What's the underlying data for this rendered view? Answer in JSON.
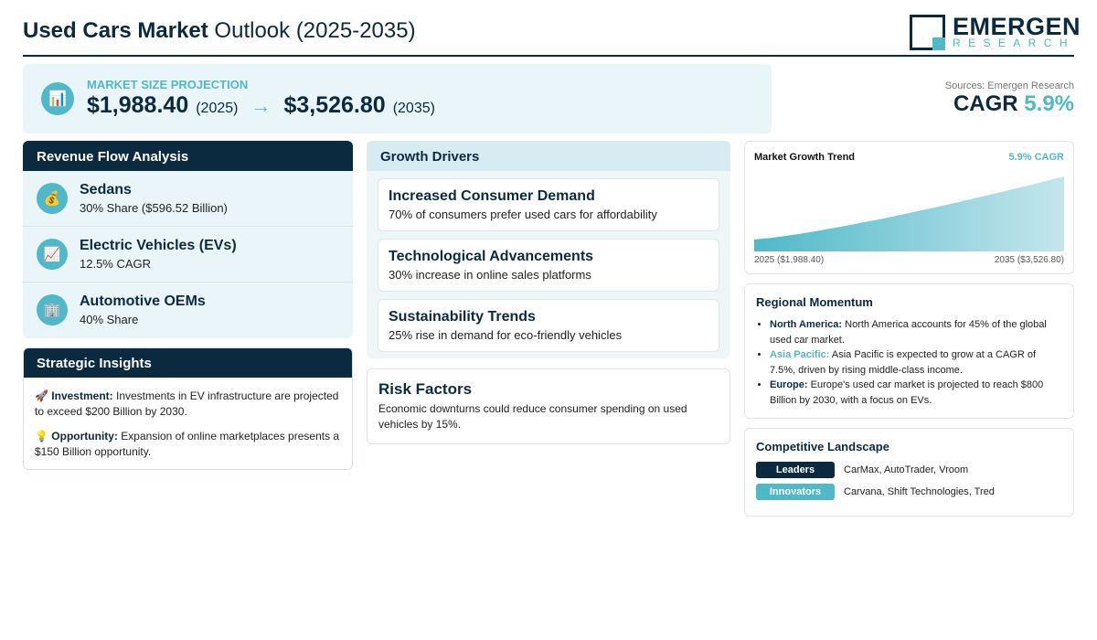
{
  "header": {
    "title_bold": "Used Cars Market",
    "title_rest": " Outlook (2025-2035)",
    "logo_name": "EMERGEN",
    "logo_sub": "RESEARCH"
  },
  "projection": {
    "label": "MARKET SIZE PROJECTION",
    "icon": "bar-chart-icon",
    "start_value": "$1,988.40",
    "start_year": "(2025)",
    "arrow": "→",
    "end_value": "$3,526.80",
    "end_year": "(2035)"
  },
  "cagr": {
    "source": "Sources: Emergen Research",
    "label": "CAGR ",
    "value": "5.9%"
  },
  "revenue_flow": {
    "title": "Revenue Flow Analysis",
    "items": [
      {
        "icon": "money-bag-icon",
        "title": "Sedans",
        "subtitle": "30% Share ($596.52 Billion)"
      },
      {
        "icon": "trend-up-icon",
        "title": "Electric Vehicles (EVs)",
        "subtitle": "12.5% CAGR"
      },
      {
        "icon": "building-icon",
        "title": "Automotive OEMs",
        "subtitle": "40% Share"
      }
    ]
  },
  "strategic_insights": {
    "title": "Strategic Insights",
    "items": [
      {
        "icon": "rocket-icon",
        "label": "Investment:",
        "text": " Investments in EV infrastructure are projected to exceed $200 Billion by 2030."
      },
      {
        "icon": "lightbulb-icon",
        "label": "Opportunity:",
        "text": " Expansion of online marketplaces presents a $150 Billion opportunity."
      }
    ]
  },
  "growth_drivers": {
    "title": "Growth Drivers",
    "items": [
      {
        "title": "Increased Consumer Demand",
        "desc": "70% of consumers prefer used cars for affordability"
      },
      {
        "title": "Technological Advancements",
        "desc": "30% increase in online sales platforms"
      },
      {
        "title": "Sustainability Trends",
        "desc": "25% rise in demand for eco-friendly vehicles"
      }
    ]
  },
  "risk_factors": {
    "title": "Risk Factors",
    "desc": "Economic downturns could reduce consumer spending on used vehicles by 15%."
  },
  "trend": {
    "title": "Market Growth Trend",
    "cagr": "5.9% CAGR",
    "start_label": "2025 ($1,988.40)",
    "end_label": "2035 ($3,526.80)"
  },
  "chart_data": {
    "type": "area",
    "title": "Market Growth Trend",
    "x": [
      2025,
      2035
    ],
    "y": [
      1988.4,
      3526.8
    ],
    "grid": false
  },
  "regional": {
    "title": "Regional Momentum",
    "items": [
      {
        "label": "North America:",
        "text": " North America accounts for 45% of the global used car market.",
        "accent": "dark"
      },
      {
        "label": "Asia Pacific:",
        "text": " Asia Pacific is expected to grow at a CAGR of 7.5%, driven by rising middle-class income.",
        "accent": "teal"
      },
      {
        "label": "Europe:",
        "text": " Europe's used car market is projected to reach $800 Billion by 2030, with a focus on EVs.",
        "accent": "dark"
      }
    ]
  },
  "competitive": {
    "title": "Competitive Landscape",
    "rows": [
      {
        "tag": "Leaders",
        "names": "CarMax, AutoTrader, Vroom"
      },
      {
        "tag": "Innovators",
        "names": "Carvana, Shift Technologies, Tred"
      }
    ]
  },
  "colors": {
    "navy": "#0b2a3f",
    "teal": "#4fb8c9",
    "panel": "#e9f5f8"
  }
}
